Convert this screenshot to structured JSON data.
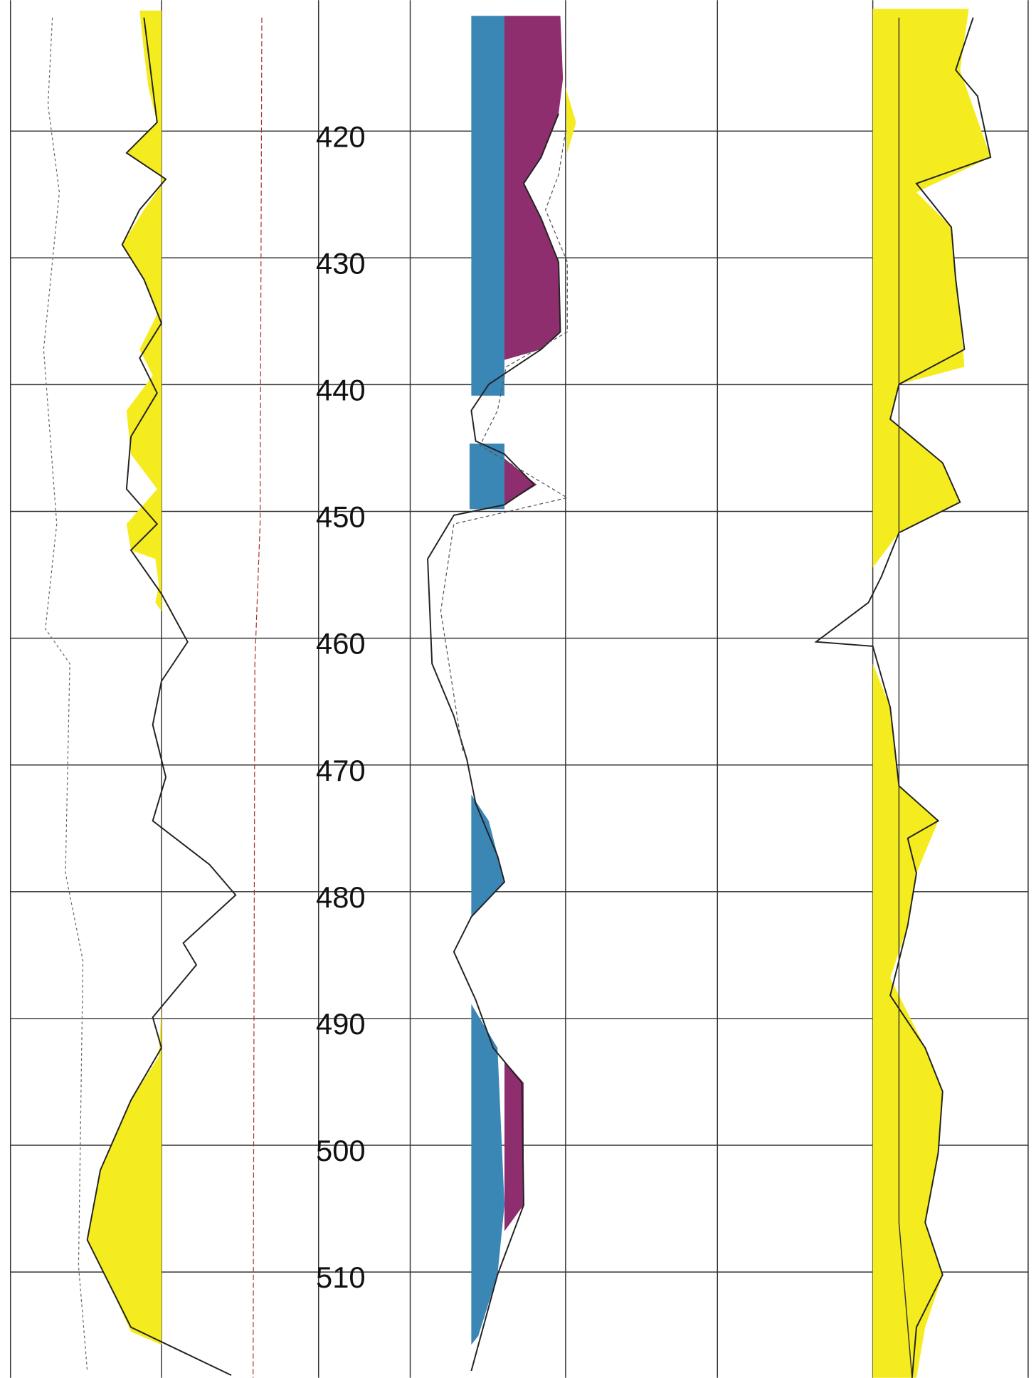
{
  "depth_labels": [
    "420",
    "430",
    "440",
    "450",
    "460",
    "470",
    "480",
    "490",
    "500",
    "510"
  ]
}
